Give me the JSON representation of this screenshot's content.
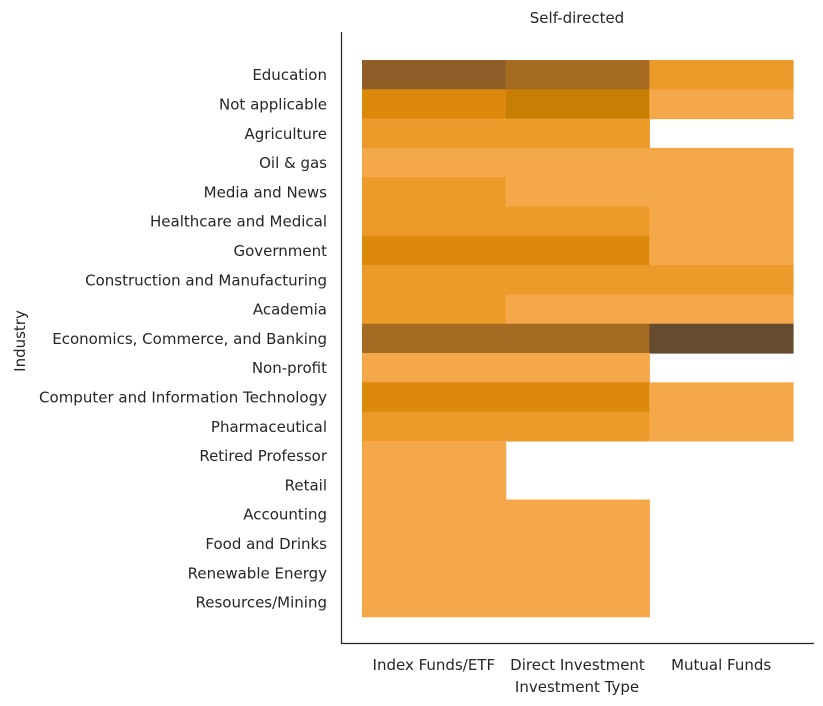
{
  "chart_data": {
    "type": "heatmap",
    "title": "Self-directed",
    "xlabel": "Investment Type",
    "ylabel": "Industry",
    "x_categories": [
      "Index Funds/ETF",
      "Direct Investment",
      "Mutual Funds"
    ],
    "y_categories": [
      "Education",
      "Not applicable",
      "Agriculture",
      "Oil & gas",
      "Media and News",
      "Healthcare and Medical",
      "Government",
      "Construction and Manufacturing",
      "Academia",
      "Economics, Commerce, and Banking",
      "Non-profit",
      "Computer and Information Technology",
      "Pharmaceutical",
      "Retired Professor ",
      "Retail",
      "Accounting",
      "Food and Drinks",
      "Renewable Energy",
      "Resources/Mining"
    ],
    "values": [
      [
        4,
        3,
        2
      ],
      [
        2.5,
        2.8,
        1
      ],
      [
        2,
        2,
        null
      ],
      [
        1,
        1,
        1
      ],
      [
        2,
        1,
        1
      ],
      [
        2,
        2,
        1
      ],
      [
        2.5,
        2.5,
        1
      ],
      [
        2,
        2,
        2
      ],
      [
        2,
        1,
        1
      ],
      [
        3,
        3,
        5
      ],
      [
        1,
        1,
        null
      ],
      [
        2.5,
        2.5,
        1
      ],
      [
        2,
        2,
        1
      ],
      [
        1,
        null,
        null
      ],
      [
        1,
        null,
        null
      ],
      [
        1,
        1,
        null
      ],
      [
        1,
        1,
        null
      ],
      [
        1,
        1,
        null
      ],
      [
        1,
        1,
        null
      ]
    ],
    "colors": {
      "1": "#f5a84a",
      "2": "#ec9a2a",
      "2.5": "#dd8a0c",
      "2.8": "#c87e02",
      "3": "#a66b22",
      "4": "#8f5e29",
      "5": "#674b31"
    },
    "grid": false,
    "legend": "none"
  }
}
